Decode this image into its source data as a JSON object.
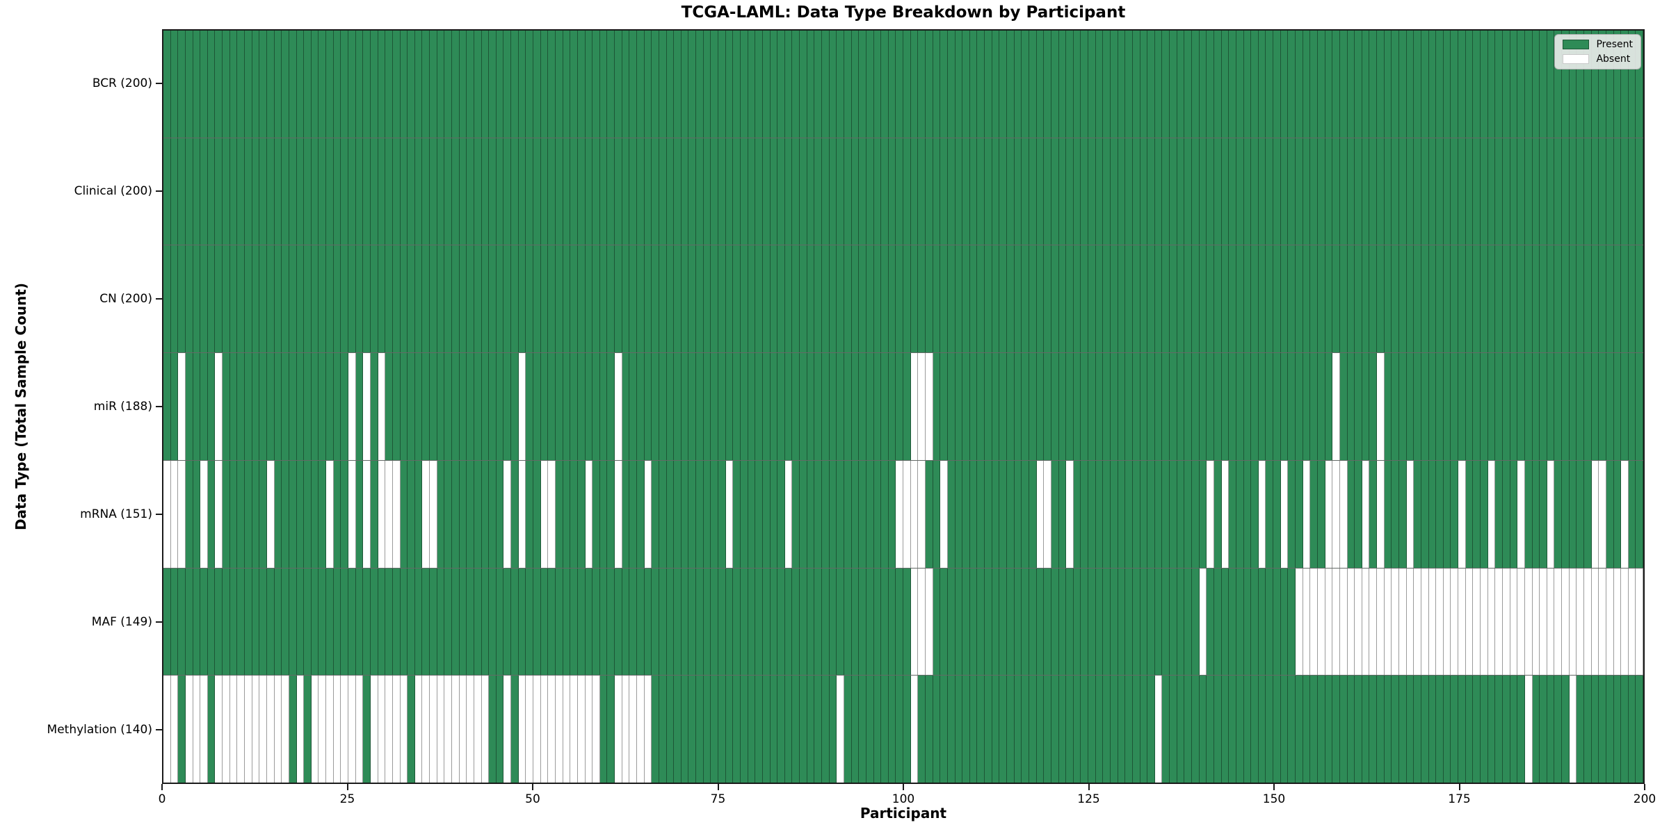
{
  "chart_data": {
    "type": "heatmap",
    "title": "TCGA-LAML: Data Type Breakdown by Participant",
    "xlabel": "Participant",
    "ylabel": "Data Type (Total Sample Count)",
    "n_participants": 200,
    "x_ticks": [
      0,
      25,
      50,
      75,
      100,
      125,
      150,
      175,
      200
    ],
    "x_range": [
      0,
      200
    ],
    "grid": false,
    "legend_position": "upper right",
    "legend": {
      "present_label": "Present",
      "absent_label": "Absent"
    },
    "colors": {
      "present": "#2e8b57",
      "absent": "#ffffff",
      "edge_on_present": "#1d5636",
      "edge_on_absent": "#9b9b9b"
    },
    "rows": [
      {
        "label": "BCR",
        "total": 200,
        "display": "BCR (200)",
        "absent": []
      },
      {
        "label": "Clinical",
        "total": 200,
        "display": "Clinical (200)",
        "absent": []
      },
      {
        "label": "CN",
        "total": 200,
        "display": "CN (200)",
        "absent": []
      },
      {
        "label": "miR",
        "total": 188,
        "display": "miR (188)",
        "absent": [
          2,
          7,
          25,
          27,
          29,
          48,
          61,
          101,
          102,
          103,
          158,
          164
        ]
      },
      {
        "label": "mRNA",
        "total": 151,
        "display": "mRNA (151)",
        "absent": [
          0,
          1,
          2,
          5,
          7,
          14,
          22,
          25,
          27,
          29,
          30,
          31,
          35,
          36,
          46,
          48,
          51,
          52,
          57,
          61,
          65,
          76,
          84,
          99,
          100,
          101,
          102,
          105,
          118,
          119,
          122,
          141,
          143,
          148,
          151,
          154,
          157,
          158,
          159,
          162,
          164,
          168,
          175,
          179,
          183,
          187,
          193,
          194,
          197
        ]
      },
      {
        "label": "MAF",
        "total": 149,
        "display": "MAF (149)",
        "absent": [
          101,
          102,
          103,
          140,
          153,
          154,
          155,
          156,
          157,
          158,
          159,
          160,
          161,
          162,
          163,
          164,
          165,
          166,
          167,
          168,
          169,
          170,
          171,
          172,
          173,
          174,
          175,
          176,
          177,
          178,
          179,
          180,
          181,
          182,
          183,
          184,
          185,
          186,
          187,
          188,
          189,
          190,
          191,
          192,
          193,
          194,
          195,
          196,
          197,
          198,
          199
        ]
      },
      {
        "label": "Methylation",
        "total": 140,
        "display": "Methylation (140)",
        "absent": [
          0,
          1,
          3,
          4,
          5,
          7,
          8,
          9,
          10,
          11,
          12,
          13,
          14,
          15,
          16,
          18,
          20,
          21,
          22,
          23,
          24,
          25,
          26,
          28,
          29,
          30,
          31,
          32,
          34,
          35,
          36,
          37,
          38,
          39,
          40,
          41,
          42,
          43,
          46,
          48,
          49,
          50,
          51,
          52,
          53,
          54,
          55,
          56,
          57,
          58,
          61,
          62,
          63,
          64,
          65,
          91,
          101,
          134,
          184,
          190
        ]
      }
    ]
  }
}
